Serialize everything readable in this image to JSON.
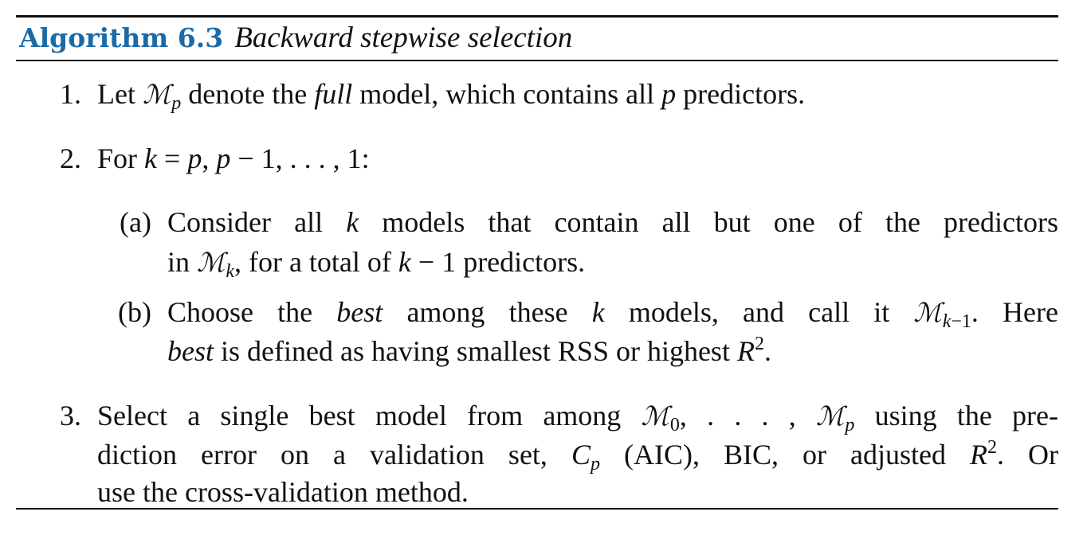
{
  "algorithm": {
    "label": "Algorithm 6.3",
    "title": "Backward stepwise selection"
  },
  "steps": [
    {
      "number": "1.",
      "text": "Let ℳp denote the full model, which contains all p predictors."
    },
    {
      "number": "2.",
      "text": "For k = p, p − 1, . . . , 1:",
      "substeps": [
        {
          "label": "(a)",
          "text": "Consider all k models that contain all but one of the predictors in ℳk, for a total of k − 1 predictors."
        },
        {
          "label": "(b)",
          "text": "Choose the best among these k models, and call it ℳk−1. Here best is defined as having smallest RSS or highest R2."
        }
      ]
    },
    {
      "number": "3.",
      "text": "Select a single best model from among ℳ0, . . . , ℳp using the prediction error on a validation set, Cp (AIC), BIC, or adjusted R2. Or use the cross-validation method."
    }
  ]
}
